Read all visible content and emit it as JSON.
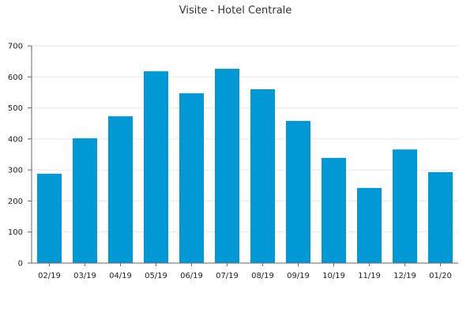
{
  "chart_data": {
    "type": "bar",
    "title": "Visite - Hotel Centrale",
    "xlabel": "",
    "ylabel": "",
    "categories": [
      "02/19",
      "03/19",
      "04/19",
      "05/19",
      "06/19",
      "07/19",
      "08/19",
      "09/19",
      "10/19",
      "11/19",
      "12/19",
      "01/20"
    ],
    "values": [
      288,
      402,
      473,
      618,
      547,
      626,
      560,
      458,
      339,
      242,
      366,
      293
    ],
    "ylim": [
      0,
      700
    ],
    "yticks": [
      "0",
      "100",
      "200",
      "300",
      "400",
      "500",
      "600",
      "700"
    ],
    "grid": true,
    "legend": "none",
    "colors": {
      "bar": "#0099d6",
      "grid": "#e6e6e6",
      "axis": "#666666",
      "text": "#222222"
    }
  }
}
